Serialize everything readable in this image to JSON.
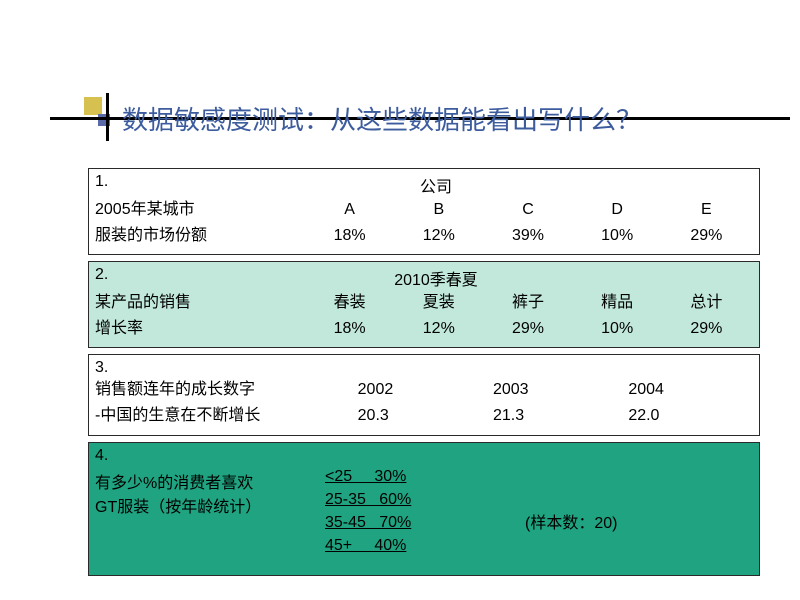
{
  "title": "数据敏感度测试：从这些数据能看出写什么？",
  "box1": {
    "num": "1.",
    "header": "公司",
    "rows": [
      {
        "label": "2005年某城市",
        "cols": [
          "A",
          "B",
          "C",
          "D",
          "E"
        ]
      },
      {
        "label": "服装的市场份额",
        "cols": [
          "18%",
          "12%",
          "39%",
          "10%",
          "29%"
        ]
      }
    ]
  },
  "box2": {
    "num": "2.",
    "header": "2010季春夏",
    "rows": [
      {
        "label": "某产品的销售",
        "cols": [
          "春装",
          "夏装",
          "裤子",
          "精品",
          "总计"
        ]
      },
      {
        "label": "增长率",
        "cols": [
          "18%",
          "12%",
          "29%",
          "10%",
          "29%"
        ]
      }
    ]
  },
  "box3": {
    "num": "3.",
    "rows": [
      {
        "label": "销售额连年的成长数字",
        "cols": [
          "2002",
          "2003",
          "2004"
        ]
      },
      {
        "label": "-中国的生意在不断增长",
        "cols": [
          "20.3",
          "21.3",
          "22.0"
        ]
      }
    ]
  },
  "box4": {
    "num": "4.",
    "left1": "有多少%的消费者喜欢",
    "left2": "GT服装（按年龄统计）",
    "mid": [
      "<25     30%",
      "25-35   60%",
      "35-45   70%",
      "45+     40%"
    ],
    "right": "(样本数：20)"
  },
  "colors": {
    "title": "#3d5c9e",
    "box2_bg": "#c1e8db",
    "box4_bg": "#1fa380",
    "deco_yellow": "#d6c050",
    "deco_blue": "#5a6aa8"
  }
}
